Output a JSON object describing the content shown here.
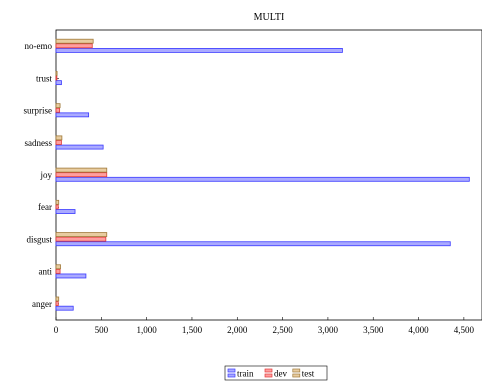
{
  "chart_data": {
    "type": "bar",
    "orientation": "horizontal",
    "title": "MULTI",
    "xlabel": "",
    "ylabel": "",
    "categories": [
      "no-emo",
      "trust",
      "surprise",
      "sadness",
      "joy",
      "fear",
      "disgust",
      "anti",
      "anger"
    ],
    "series": [
      {
        "name": "train",
        "color": "#3a3aff",
        "values": [
          3160,
          60,
          360,
          520,
          4560,
          210,
          4350,
          330,
          190
        ]
      },
      {
        "name": "dev",
        "color": "#e23a3a",
        "values": [
          400,
          10,
          40,
          60,
          560,
          25,
          550,
          45,
          25
        ]
      },
      {
        "name": "test",
        "color": "#a07a3a",
        "values": [
          410,
          12,
          45,
          65,
          560,
          30,
          560,
          50,
          30
        ]
      }
    ],
    "xlim": [
      0,
      4700
    ],
    "xticks": [
      0,
      500,
      1000,
      1500,
      2000,
      2500,
      3000,
      3500,
      4000,
      4500
    ],
    "xtick_labels": [
      "0",
      "500",
      "1,000",
      "1,500",
      "2,000",
      "2,500",
      "3,000",
      "3,500",
      "4,000",
      "4,500"
    ],
    "grid": false,
    "legend_position": "bottom-center"
  }
}
